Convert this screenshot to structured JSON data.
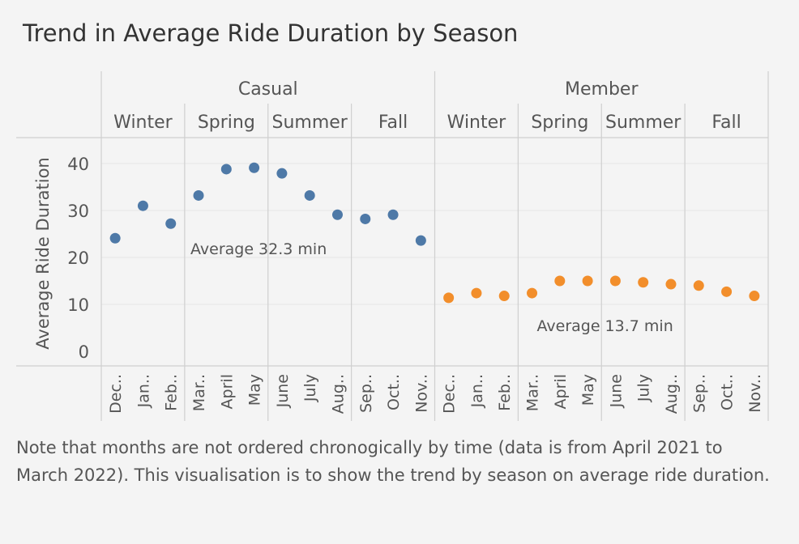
{
  "chart_data": {
    "type": "scatter",
    "title": "Trend in Average Ride Duration by Season",
    "ylabel": "Average Ride Duration",
    "ylim": [
      0,
      45
    ],
    "yticks": [
      0,
      10,
      20,
      30,
      40
    ],
    "grid": true,
    "groups": [
      {
        "name": "Casual",
        "color": "#4e79a7",
        "average_label": "Average 32.3 min",
        "seasons": [
          {
            "name": "Winter",
            "months": [
              "Dec..",
              "Jan..",
              "Feb.."
            ]
          },
          {
            "name": "Spring",
            "months": [
              "Mar..",
              "April",
              "May"
            ]
          },
          {
            "name": "Summer",
            "months": [
              "June",
              "July",
              "Aug.."
            ]
          },
          {
            "name": "Fall",
            "months": [
              "Sep..",
              "Oct..",
              "Nov.."
            ]
          }
        ],
        "values": [
          24.1,
          31.0,
          27.2,
          33.2,
          38.8,
          39.1,
          37.9,
          33.2,
          29.1,
          28.2,
          29.1,
          23.6
        ]
      },
      {
        "name": "Member",
        "color": "#f28e2b",
        "average_label": "Average 13.7 min",
        "seasons": [
          {
            "name": "Winter",
            "months": [
              "Dec..",
              "Jan..",
              "Feb.."
            ]
          },
          {
            "name": "Spring",
            "months": [
              "Mar..",
              "April",
              "May"
            ]
          },
          {
            "name": "Summer",
            "months": [
              "June",
              "July",
              "Aug.."
            ]
          },
          {
            "name": "Fall",
            "months": [
              "Sep..",
              "Oct..",
              "Nov.."
            ]
          }
        ],
        "values": [
          11.4,
          12.4,
          11.8,
          12.4,
          15.0,
          15.0,
          15.0,
          14.7,
          14.3,
          14.0,
          12.7,
          11.8
        ]
      }
    ]
  },
  "note": "Note that months are not ordered chronogically by time (data is from April 2021 to March 2022). This visualisation is to show the trend by season on average ride duration."
}
